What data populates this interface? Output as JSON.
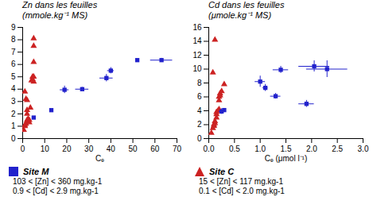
{
  "chart_data": [
    {
      "type": "scatter",
      "title": "Zn dans les feuilles",
      "subtitle": "(mmole.kg⁻¹ MS)",
      "xlabel": "Cₑ",
      "xlim": [
        0,
        70
      ],
      "ylim": [
        0,
        9
      ],
      "xticks": [
        0,
        10,
        20,
        30,
        40,
        50,
        60,
        70
      ],
      "yticks": [
        0,
        1,
        2,
        3,
        4,
        5,
        6,
        7,
        8,
        9
      ],
      "legend": "bottom",
      "series": [
        {
          "name": "Site M",
          "color": "#2222CC",
          "marker": "square",
          "x": [
            5,
            13,
            19,
            27,
            38,
            40,
            52,
            63
          ],
          "y": [
            1.7,
            2.3,
            3.95,
            4.0,
            4.9,
            5.5,
            6.35,
            6.35
          ],
          "xerr": [
            0,
            0,
            2,
            3,
            3,
            1.5,
            0,
            5
          ],
          "yerr": [
            0,
            0,
            0.3,
            0.15,
            0.3,
            0.25,
            0,
            0.15
          ],
          "annotations": [
            "103 < [Zn] < 360 mg.kg-1",
            "0.9 < [Cd] < 2.9 mg.kg-1"
          ]
        },
        {
          "name": "Site C",
          "color": "#CC2222",
          "marker": "triangle",
          "x": [
            0.5,
            1,
            1,
            1.5,
            2,
            2,
            2,
            2,
            2.5,
            3,
            3,
            3.5,
            4,
            4.5,
            4.5,
            5,
            5,
            5,
            5,
            5,
            1,
            1.5,
            2
          ],
          "y": [
            0.7,
            1.0,
            1.1,
            1.2,
            1.4,
            1.5,
            2.0,
            2.3,
            1.6,
            1.3,
            1.5,
            2.5,
            4.7,
            5.0,
            4.8,
            4.6,
            5.0,
            6.2,
            7.5,
            8.1,
            3.8,
            3.2,
            3.1
          ],
          "annotations": [
            "15 < [Zn] < 117 mg.kg-1",
            "0.1 < [Cd] < 2.0 mg.kg-1"
          ]
        }
      ]
    },
    {
      "type": "scatter",
      "title": "Cd dans les feuilles",
      "subtitle": "(μmole.kg⁻¹ MS)",
      "xlabel": "Cₑ (μmol l⁻¹)",
      "xlim": [
        0,
        3.0
      ],
      "ylim": [
        0,
        16
      ],
      "xticks": [
        {
          "value": 0.0,
          "label": "0.0"
        },
        0.5,
        {
          "value": 1.0,
          "label": "1.0"
        },
        1.5,
        {
          "value": 2.0,
          "label": "2.0"
        },
        2.5,
        {
          "value": 3.0,
          "label": "3.0"
        }
      ],
      "yticks": [
        0,
        2,
        4,
        6,
        8,
        10,
        12,
        14,
        16
      ],
      "series": [
        {
          "color": "#2222CC",
          "marker": "square",
          "x": [
            0.25,
            0.3,
            1.4,
            1.0,
            1.1,
            1.3,
            2.05,
            2.3,
            1.9
          ],
          "y": [
            3.9,
            4.1,
            9.9,
            8.2,
            7.3,
            6.1,
            10.4,
            10.0,
            5.0
          ],
          "xerr": [
            0.05,
            0.0,
            0.15,
            0.1,
            0.05,
            0.1,
            0.3,
            0.4,
            0.15
          ],
          "yerr": [
            0.4,
            0.0,
            0.5,
            0.8,
            0.5,
            0.4,
            0.8,
            1.2,
            0.5
          ]
        },
        {
          "color": "#CC2222",
          "marker": "triangle",
          "x": [
            0.05,
            0.08,
            0.1,
            0.1,
            0.12,
            0.12,
            0.15,
            0.15,
            0.15,
            0.18,
            0.2,
            0.2,
            0.2,
            0.2,
            0.22,
            0.22,
            0.25,
            0.3,
            0.08,
            0.12
          ],
          "y": [
            0.8,
            1.5,
            1.8,
            2.0,
            2.2,
            2.5,
            3.0,
            3.5,
            3.8,
            4.0,
            4.0,
            4.2,
            5.5,
            6.0,
            6.2,
            6.5,
            6.8,
            7.8,
            9.5,
            14.2
          ]
        }
      ]
    }
  ]
}
